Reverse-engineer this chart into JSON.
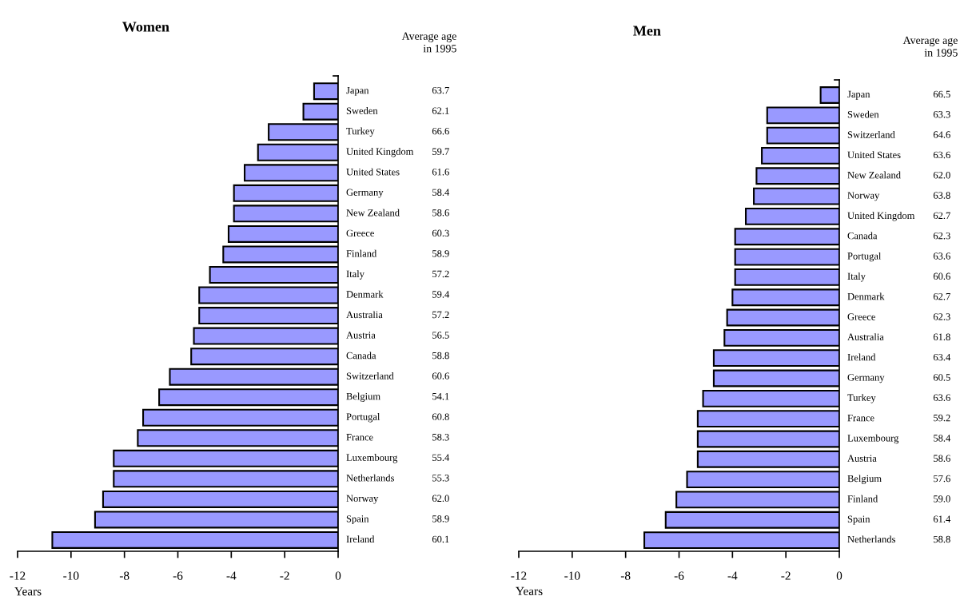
{
  "chart_data": [
    {
      "type": "bar",
      "orientation": "horizontal",
      "title": "Women",
      "xlabel": "Years",
      "categories": [
        "Japan",
        "Sweden",
        "Turkey",
        "United Kingdom",
        "United States",
        "Germany",
        "New Zealand",
        "Greece",
        "Finland",
        "Italy",
        "Denmark",
        "Australia",
        "Austria",
        "Canada",
        "Switzerland",
        "Belgium",
        "Portugal",
        "France",
        "Luxembourg",
        "Netherlands",
        "Norway",
        "Spain",
        "Ireland"
      ],
      "values": [
        -0.9,
        -1.3,
        -2.6,
        -3.0,
        -3.5,
        -3.9,
        -3.9,
        -4.1,
        -4.3,
        -4.8,
        -5.2,
        -5.2,
        -5.4,
        -5.5,
        -6.3,
        -6.7,
        -7.3,
        -7.5,
        -8.4,
        -8.4,
        -8.8,
        -9.1,
        -10.7
      ],
      "color": "#9999ff",
      "xlim": [
        -12,
        0
      ],
      "xticks": [
        -12,
        -10,
        -8,
        -6,
        -4,
        -2,
        0
      ],
      "grid": false,
      "legend": false,
      "annotations": [
        "Average age\nin 1995",
        "63.7",
        "62.1",
        "66.6",
        "59.7",
        "61.6",
        "58.4",
        "58.6",
        "60.3",
        "58.9",
        "57.2",
        "59.4",
        "57.2",
        "56.5",
        "58.8",
        "60.6",
        "54.1",
        "60.8",
        "58.3",
        "55.4",
        "55.3",
        "62.0",
        "58.9",
        "60.1"
      ]
    },
    {
      "type": "bar",
      "orientation": "horizontal",
      "title": "Men",
      "xlabel": "Years",
      "categories": [
        "Japan",
        "Sweden",
        "Switzerland",
        "United States",
        "New Zealand",
        "Norway",
        "United Kingdom",
        "Canada",
        "Portugal",
        "Italy",
        "Denmark",
        "Greece",
        "Australia",
        "Ireland",
        "Germany",
        "Turkey",
        "France",
        "Luxembourg",
        "Austria",
        "Belgium",
        "Finland",
        "Spain",
        "Netherlands"
      ],
      "values": [
        -0.7,
        -2.7,
        -2.7,
        -2.9,
        -3.1,
        -3.2,
        -3.5,
        -3.9,
        -3.9,
        -3.9,
        -4.0,
        -4.2,
        -4.3,
        -4.7,
        -4.7,
        -5.1,
        -5.3,
        -5.3,
        -5.3,
        -5.7,
        -6.1,
        -6.5,
        -7.3
      ],
      "color": "#9999ff",
      "xlim": [
        -12,
        0
      ],
      "xticks": [
        -12,
        -10,
        -8,
        -6,
        -4,
        -2,
        0
      ],
      "grid": false,
      "legend": false,
      "annotations": [
        "Average age\nin 1995",
        "66.5",
        "63.3",
        "64.6",
        "63.6",
        "62.0",
        "63.8",
        "62.7",
        "62.3",
        "63.6",
        "60.6",
        "62.7",
        "62.3",
        "61.8",
        "63.4",
        "60.5",
        "63.6",
        "59.2",
        "58.4",
        "58.6",
        "57.6",
        "59.0",
        "61.4",
        "58.8"
      ]
    }
  ]
}
